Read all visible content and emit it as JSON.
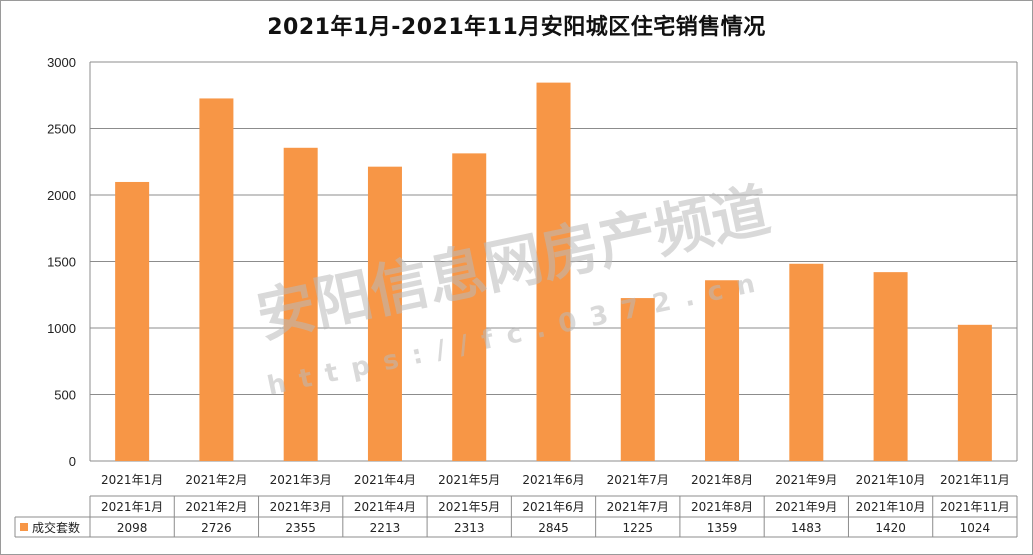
{
  "chart_data": {
    "type": "bar",
    "title": "2021年1月-2021年11月安阳城区住宅销售情况",
    "categories": [
      "2021年1月",
      "2021年2月",
      "2021年3月",
      "2021年4月",
      "2021年5月",
      "2021年6月",
      "2021年7月",
      "2021年8月",
      "2021年9月",
      "2021年10月",
      "2021年11月"
    ],
    "series": [
      {
        "name": "成交套数",
        "values": [
          2098,
          2726,
          2355,
          2213,
          2313,
          2845,
          1225,
          1359,
          1483,
          1420,
          1024
        ],
        "color": "#F79646"
      }
    ],
    "ylim": [
      0,
      3000
    ],
    "yticks": [
      0,
      500,
      1000,
      1500,
      2000,
      2500,
      3000
    ],
    "grid": true,
    "data_table": true
  },
  "watermark": {
    "main": "安阳信息网房产频道",
    "url": "https://fc.0372.cn"
  }
}
